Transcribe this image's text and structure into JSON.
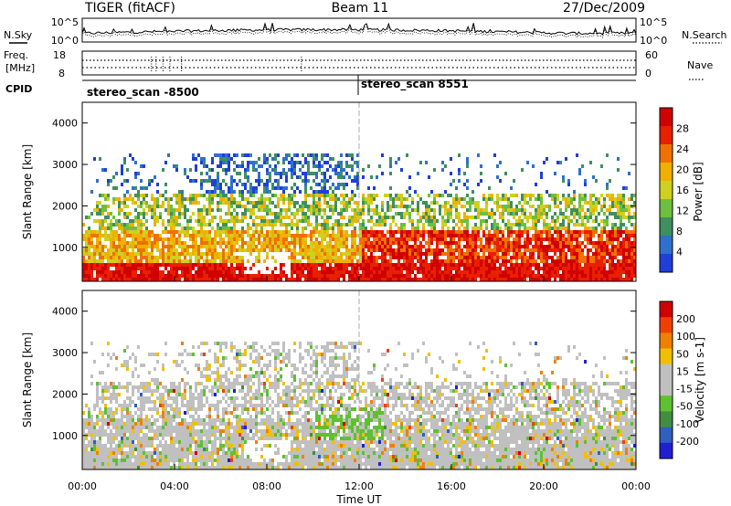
{
  "header": {
    "title": "TIGER (fitACF)",
    "beam": "Beam 11",
    "date": "27/Dec/2009"
  },
  "top_panels": {
    "nsky_label": "N.Sky",
    "nsky_ticks": [
      "10^5",
      "10^0"
    ],
    "nsearch_label": "N.Search",
    "nsearch_ticks": [
      "10^5",
      "10^0"
    ],
    "freq_label": "Freq.",
    "freq_unit": "[MHz]",
    "freq_ticks": [
      "18",
      "8"
    ],
    "nave_label": "Nave",
    "nave_ticks": [
      "60",
      "0"
    ],
    "cpid_label": "CPID",
    "cpid_segments": [
      "stereo_scan -8500",
      "stereo_scan 8551"
    ]
  },
  "colors": {
    "power": [
      "#1f3fd8",
      "#2f6fd0",
      "#3f8f5f",
      "#6fbf3f",
      "#cfd020",
      "#f0b000",
      "#f07000",
      "#e82000",
      "#d00000"
    ],
    "velocity": [
      "#2020d0",
      "#2f60c0",
      "#3f8f3f",
      "#5fc030",
      "#c0c0c0",
      "#c0c0c0",
      "#f0c000",
      "#f08000",
      "#f04000",
      "#d00000"
    ],
    "blank": "#ffffff"
  },
  "chart_data": [
    {
      "type": "heatmap",
      "title": "",
      "xlabel": "",
      "ylabel": "Slant Range [km]",
      "x_ticks": [
        "00:00",
        "04:00",
        "08:00",
        "12:00",
        "16:00",
        "20:00",
        "00:00"
      ],
      "y_ticks": [
        "1000",
        "2000",
        "3000",
        "4000"
      ],
      "xlim": [
        0,
        24
      ],
      "ylim": [
        180,
        4500
      ],
      "colorbar": {
        "label": "Power [dB]",
        "ticks": [
          "4",
          "8",
          "12",
          "16",
          "20",
          "24",
          "28"
        ],
        "range": [
          0,
          30
        ]
      },
      "annotations": [
        "scan change at 12:00 UT"
      ]
    },
    {
      "type": "heatmap",
      "title": "",
      "xlabel": "Time UT",
      "ylabel": "Slant Range [km]",
      "x_ticks": [
        "00:00",
        "04:00",
        "08:00",
        "12:00",
        "16:00",
        "20:00",
        "00:00"
      ],
      "y_ticks": [
        "1000",
        "2000",
        "3000",
        "4000"
      ],
      "xlim": [
        0,
        24
      ],
      "ylim": [
        180,
        4500
      ],
      "colorbar": {
        "label": "Velocity [m s-1]",
        "ticks": [
          "200",
          "100",
          "50",
          "15",
          "-15",
          "-50",
          "-100",
          "-200"
        ],
        "range": [
          -250,
          250
        ]
      }
    }
  ]
}
